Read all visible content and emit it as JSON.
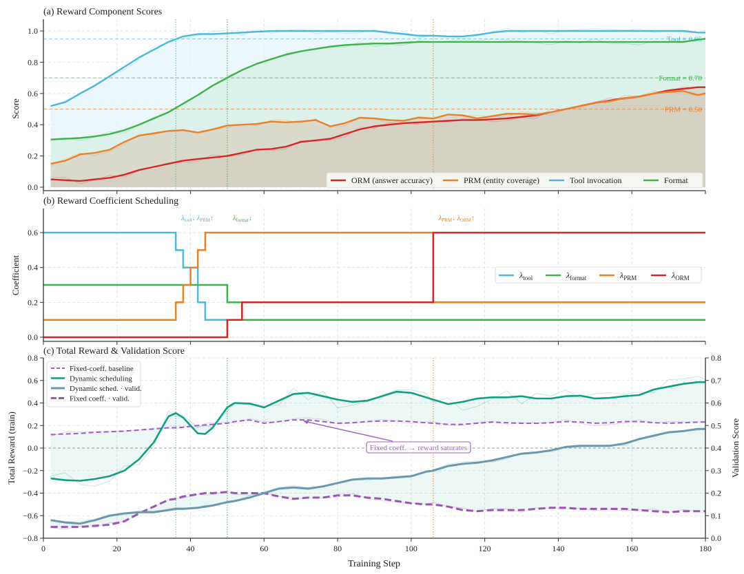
{
  "chart_data": [
    {
      "id": "a",
      "type": "line",
      "title": "(a)  Reward Component Scores",
      "xlabel": "",
      "ylabel": "Score",
      "xlim": [
        0,
        180
      ],
      "ylim": [
        -0.02,
        1.08
      ],
      "yticks": [
        0.0,
        0.2,
        0.4,
        0.6,
        0.8,
        1.0
      ],
      "ytick_labels": [
        "0.0",
        "0.2",
        "0.4",
        "0.6",
        "0.8",
        "1.0"
      ],
      "grid": true,
      "legend_position": "lower-right",
      "x": [
        2,
        6,
        10,
        14,
        18,
        22,
        26,
        30,
        34,
        38,
        42,
        46,
        50,
        54,
        58,
        62,
        66,
        70,
        74,
        78,
        82,
        86,
        90,
        94,
        98,
        102,
        106,
        110,
        114,
        118,
        122,
        126,
        130,
        134,
        138,
        142,
        146,
        150,
        154,
        158,
        162,
        166,
        170,
        174,
        178,
        180
      ],
      "series": [
        {
          "name": "ORM (answer accuracy)",
          "color": "#d62728",
          "values": [
            0.05,
            0.045,
            0.04,
            0.05,
            0.06,
            0.08,
            0.11,
            0.13,
            0.15,
            0.17,
            0.18,
            0.19,
            0.2,
            0.22,
            0.24,
            0.245,
            0.26,
            0.29,
            0.3,
            0.31,
            0.34,
            0.37,
            0.39,
            0.4,
            0.41,
            0.415,
            0.42,
            0.425,
            0.43,
            0.43,
            0.435,
            0.44,
            0.45,
            0.46,
            0.48,
            0.5,
            0.52,
            0.54,
            0.555,
            0.57,
            0.58,
            0.6,
            0.62,
            0.63,
            0.64,
            0.64
          ]
        },
        {
          "name": "PRM (entity coverage)",
          "color": "#e8822a",
          "values": [
            0.15,
            0.17,
            0.21,
            0.22,
            0.24,
            0.29,
            0.33,
            0.345,
            0.36,
            0.365,
            0.35,
            0.37,
            0.395,
            0.4,
            0.405,
            0.42,
            0.415,
            0.42,
            0.43,
            0.39,
            0.41,
            0.445,
            0.44,
            0.43,
            0.425,
            0.445,
            0.44,
            0.465,
            0.46,
            0.44,
            0.455,
            0.47,
            0.47,
            0.465,
            0.48,
            0.5,
            0.52,
            0.54,
            0.55,
            0.57,
            0.58,
            0.6,
            0.61,
            0.615,
            0.59,
            0.6
          ]
        },
        {
          "name": "Tool invocation",
          "color": "#4db8d8",
          "values": [
            0.52,
            0.545,
            0.6,
            0.65,
            0.71,
            0.77,
            0.83,
            0.88,
            0.93,
            0.965,
            0.98,
            0.98,
            0.985,
            0.99,
            0.995,
            1.0,
            1.0,
            1.0,
            1.0,
            1.0,
            1.0,
            1.0,
            1.0,
            0.99,
            0.98,
            0.97,
            0.97,
            0.965,
            0.965,
            0.975,
            0.99,
            1.0,
            1.0,
            1.0,
            1.0,
            1.0,
            1.0,
            1.0,
            1.0,
            1.0,
            1.0,
            1.0,
            1.0,
            1.0,
            0.99,
            0.99
          ]
        },
        {
          "name": "Format",
          "color": "#3db34a",
          "values": [
            0.305,
            0.31,
            0.315,
            0.325,
            0.34,
            0.365,
            0.4,
            0.44,
            0.48,
            0.535,
            0.59,
            0.65,
            0.7,
            0.75,
            0.79,
            0.82,
            0.85,
            0.87,
            0.885,
            0.9,
            0.91,
            0.915,
            0.92,
            0.92,
            0.925,
            0.93,
            0.93,
            0.93,
            0.93,
            0.93,
            0.93,
            0.93,
            0.93,
            0.93,
            0.93,
            0.93,
            0.93,
            0.93,
            0.93,
            0.93,
            0.93,
            0.93,
            0.93,
            0.93,
            0.945,
            0.95
          ]
        }
      ],
      "reference_lines": [
        {
          "label": "Tool = 0.95",
          "y": 0.95,
          "color": "#4db8d8"
        },
        {
          "label": "Format = 0.70",
          "y": 0.7,
          "color": "#3db34a"
        },
        {
          "label": "PRM = 0.50",
          "y": 0.5,
          "color": "#e8822a"
        }
      ],
      "vertical_markers": [
        {
          "x": 36,
          "color": "#4db8d8"
        },
        {
          "x": 50,
          "color": "#3db34a"
        },
        {
          "x": 106,
          "color": "#e8822a"
        }
      ]
    },
    {
      "id": "b",
      "type": "line",
      "title": "(b)  Reward Coefficient Scheduling",
      "xlabel": "",
      "ylabel": "Coefficient",
      "xlim": [
        0,
        180
      ],
      "ylim": [
        -0.02,
        0.72
      ],
      "yticks": [
        0.0,
        0.2,
        0.4,
        0.6
      ],
      "ytick_labels": [
        "0.0",
        "0.2",
        "0.4",
        "0.6"
      ],
      "grid": true,
      "legend_position": "center-right",
      "step": true,
      "series": [
        {
          "name": "λ",
          "sub": "tool",
          "color": "#4db8d8",
          "x": [
            0,
            36,
            38,
            40,
            42,
            44,
            46,
            50,
            180
          ],
          "values": [
            0.6,
            0.5,
            0.4,
            0.4,
            0.2,
            0.1,
            0.1,
            0.1,
            0.1
          ]
        },
        {
          "name": "λ",
          "sub": "format",
          "color": "#3db34a",
          "x": [
            0,
            50,
            54,
            180
          ],
          "values": [
            0.3,
            0.2,
            0.1,
            0.1
          ]
        },
        {
          "name": "λ",
          "sub": "PRM",
          "color": "#e8822a",
          "x": [
            0,
            36,
            38,
            40,
            42,
            44,
            106,
            180
          ],
          "values": [
            0.1,
            0.2,
            0.3,
            0.4,
            0.5,
            0.6,
            0.2,
            0.2
          ]
        },
        {
          "name": "λ",
          "sub": "ORM",
          "color": "#d62728",
          "x": [
            0,
            50,
            54,
            106,
            180
          ],
          "values": [
            0.0,
            0.1,
            0.2,
            0.6,
            0.6
          ]
        }
      ],
      "annotations": [
        {
          "x": 36,
          "parts": [
            {
              "t": "λ",
              "s": "tool",
              "a": "↓"
            },
            {
              "t": "λ",
              "s": "PRM",
              "a": "↑"
            }
          ],
          "color": "#4db8d8"
        },
        {
          "x": 50,
          "parts": [
            {
              "t": "λ",
              "s": "format",
              "a": "↓"
            }
          ],
          "color": "#3db34a"
        },
        {
          "x": 106,
          "parts": [
            {
              "t": "λ",
              "s": "PRM",
              "a": "↓"
            },
            {
              "t": "λ",
              "s": "ORM",
              "a": "↑"
            }
          ],
          "color": "#e8822a"
        }
      ]
    },
    {
      "id": "c",
      "type": "line",
      "title": "(c)  Total Reward & Validation Score",
      "xlabel": "Training Step",
      "ylabel": "Total Reward (train)",
      "ylabel_right": "Validation Score",
      "xlim": [
        0,
        180
      ],
      "ylim": [
        -0.8,
        0.8
      ],
      "ylim_right": [
        0.0,
        0.8
      ],
      "xticks": [
        0,
        20,
        40,
        60,
        80,
        100,
        120,
        140,
        160,
        180
      ],
      "xtick_labels": [
        "0",
        "20",
        "40",
        "60",
        "80",
        "100",
        "120",
        "140",
        "160",
        "180"
      ],
      "yticks": [
        -0.8,
        -0.6,
        -0.4,
        -0.2,
        0.0,
        0.2,
        0.4,
        0.6,
        0.8
      ],
      "ytick_labels": [
        "−0.8",
        "−0.6",
        "−0.4",
        "−0.2",
        "0.0",
        "0.2",
        "0.4",
        "0.6",
        "0.8"
      ],
      "yticks_right": [
        0.0,
        0.1,
        0.2,
        0.3,
        0.4,
        0.5,
        0.6,
        0.7,
        0.8
      ],
      "ytick_labels_right": [
        "0.0",
        "0.1",
        "0.2",
        "0.3",
        "0.4",
        "0.5",
        "0.6",
        "0.7",
        "0.8"
      ],
      "grid": true,
      "legend_position": "upper-left",
      "x": [
        2,
        6,
        10,
        14,
        18,
        22,
        26,
        30,
        34,
        36,
        38,
        42,
        44,
        46,
        50,
        52,
        56,
        60,
        64,
        68,
        72,
        76,
        80,
        84,
        88,
        92,
        96,
        100,
        104,
        106,
        110,
        114,
        118,
        122,
        126,
        130,
        134,
        138,
        142,
        146,
        150,
        154,
        158,
        162,
        166,
        170,
        174,
        178,
        180
      ],
      "series": [
        {
          "name": "Fixed-coeff. baseline",
          "axis": "left",
          "color": "#a05cc8",
          "style": "dashed",
          "values": [
            0.12,
            0.125,
            0.13,
            0.14,
            0.145,
            0.15,
            0.16,
            0.17,
            0.18,
            0.18,
            0.185,
            0.2,
            0.205,
            0.21,
            0.22,
            0.235,
            0.25,
            0.22,
            0.235,
            0.25,
            0.25,
            0.235,
            0.22,
            0.225,
            0.235,
            0.24,
            0.24,
            0.235,
            0.225,
            0.22,
            0.21,
            0.21,
            0.22,
            0.23,
            0.225,
            0.22,
            0.22,
            0.225,
            0.235,
            0.23,
            0.22,
            0.225,
            0.235,
            0.235,
            0.225,
            0.22,
            0.225,
            0.23,
            0.23
          ]
        },
        {
          "name": "Dynamic scheduling",
          "axis": "left",
          "color": "#129e82",
          "style": "solid",
          "values": [
            -0.27,
            -0.285,
            -0.29,
            -0.275,
            -0.25,
            -0.2,
            -0.1,
            0.05,
            0.28,
            0.31,
            0.27,
            0.13,
            0.125,
            0.18,
            0.36,
            0.4,
            0.395,
            0.36,
            0.42,
            0.48,
            0.49,
            0.46,
            0.43,
            0.41,
            0.42,
            0.46,
            0.5,
            0.49,
            0.45,
            0.43,
            0.39,
            0.41,
            0.44,
            0.45,
            0.45,
            0.46,
            0.44,
            0.44,
            0.46,
            0.465,
            0.44,
            0.445,
            0.46,
            0.47,
            0.52,
            0.545,
            0.57,
            0.585,
            0.585
          ]
        },
        {
          "name": "Dynamic sched. · valid.",
          "axis": "right",
          "color": "#6a98b0",
          "style": "solid",
          "values": [
            0.08,
            0.07,
            0.065,
            0.08,
            0.1,
            0.11,
            0.115,
            0.115,
            0.125,
            0.13,
            0.13,
            0.135,
            0.14,
            0.145,
            0.16,
            0.165,
            0.18,
            0.2,
            0.22,
            0.225,
            0.22,
            0.23,
            0.245,
            0.26,
            0.265,
            0.265,
            0.27,
            0.275,
            0.295,
            0.3,
            0.32,
            0.33,
            0.335,
            0.345,
            0.36,
            0.375,
            0.38,
            0.39,
            0.405,
            0.41,
            0.41,
            0.41,
            0.42,
            0.44,
            0.455,
            0.47,
            0.475,
            0.485,
            0.485
          ]
        },
        {
          "name": "Fixed coeff. · valid.",
          "axis": "right",
          "color": "#9b55b5",
          "style": "dashed-thick",
          "values": [
            0.05,
            0.05,
            0.05,
            0.055,
            0.06,
            0.075,
            0.11,
            0.14,
            0.17,
            0.175,
            0.185,
            0.195,
            0.2,
            0.2,
            0.205,
            0.2,
            0.2,
            0.2,
            0.185,
            0.175,
            0.18,
            0.18,
            0.19,
            0.19,
            0.18,
            0.175,
            0.165,
            0.155,
            0.15,
            0.15,
            0.14,
            0.125,
            0.12,
            0.125,
            0.125,
            0.125,
            0.13,
            0.135,
            0.135,
            0.13,
            0.13,
            0.13,
            0.13,
            0.125,
            0.12,
            0.115,
            0.12,
            0.12,
            0.12
          ]
        }
      ],
      "annotation": {
        "text": "Fixed coeff. → reward saturates",
        "arrow_to": [
          70,
          0.25
        ],
        "text_at": [
          100,
          0.0
        ],
        "color": "#a05cc8"
      },
      "reference_line": {
        "y": 0.0,
        "color": "#999999"
      },
      "vertical_markers": [
        {
          "x": 36,
          "color": "#4db8d8"
        },
        {
          "x": 50,
          "color": "#3db34a"
        },
        {
          "x": 106,
          "color": "#e8822a"
        }
      ]
    }
  ]
}
